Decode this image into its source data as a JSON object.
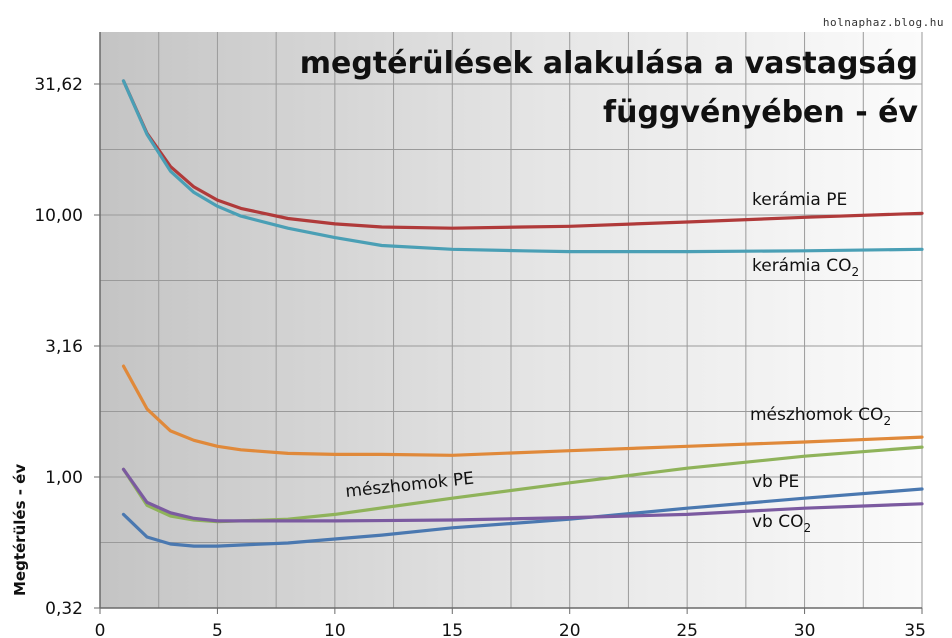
{
  "watermark": "holnaphaz.blog.hu",
  "chart_data": {
    "type": "line",
    "title_lines": [
      "megtérülések alakulása a vastagság",
      "függvényében - év"
    ],
    "xlabel": "",
    "ylabel": "Megtérülés - év",
    "y_scale": "log",
    "xlim": [
      0,
      35
    ],
    "ylim": [
      0.32,
      35
    ],
    "x_ticks": [
      0,
      5,
      10,
      15,
      20,
      25,
      30,
      35
    ],
    "x_tick_labels": [
      "0",
      "5",
      "10",
      "15",
      "20",
      "25",
      "30",
      "35"
    ],
    "y_ticks": [
      0.3162,
      1.0,
      3.162,
      10.0,
      31.62
    ],
    "y_tick_labels": [
      "0,32",
      "1,00",
      "3,16",
      "10,00",
      "31,62"
    ],
    "grid": true,
    "series": [
      {
        "name": "kerámia PE",
        "label_main": "kerámia PE",
        "label_sub": "",
        "color": "#b03a3a",
        "x": [
          1,
          2,
          3,
          4,
          5,
          6,
          8,
          10,
          12,
          15,
          18,
          20,
          25,
          30,
          35
        ],
        "y": [
          32.5,
          20.5,
          15.3,
          12.8,
          11.4,
          10.6,
          9.7,
          9.25,
          9.0,
          8.9,
          9.0,
          9.05,
          9.4,
          9.8,
          10.15
        ]
      },
      {
        "name": "kerámia CO2",
        "label_main": "kerámia CO",
        "label_sub": "2",
        "color": "#4a9fb5",
        "x": [
          1,
          2,
          3,
          4,
          5,
          6,
          8,
          10,
          12,
          15,
          18,
          20,
          25,
          30,
          35
        ],
        "y": [
          32.5,
          20.3,
          14.7,
          12.2,
          10.8,
          9.9,
          8.9,
          8.2,
          7.65,
          7.4,
          7.3,
          7.25,
          7.25,
          7.3,
          7.4
        ]
      },
      {
        "name": "mészhomok CO2",
        "label_main": "mészhomok CO",
        "label_sub": "2",
        "color": "#e0893a",
        "x": [
          1,
          2,
          3,
          4,
          5,
          6,
          8,
          10,
          12,
          15,
          20,
          25,
          30,
          35
        ],
        "y": [
          2.65,
          1.82,
          1.5,
          1.38,
          1.31,
          1.27,
          1.23,
          1.22,
          1.22,
          1.21,
          1.26,
          1.31,
          1.36,
          1.42
        ]
      },
      {
        "name": "mészhomok PE",
        "label_main": "mészhomok PE",
        "label_sub": "",
        "color": "#8fb35a",
        "x": [
          1,
          2,
          3,
          4,
          5,
          6,
          8,
          10,
          15,
          20,
          25,
          30,
          35
        ],
        "y": [
          1.07,
          0.78,
          0.71,
          0.685,
          0.675,
          0.68,
          0.69,
          0.72,
          0.83,
          0.95,
          1.08,
          1.2,
          1.3
        ]
      },
      {
        "name": "vb PE",
        "label_main": "vb PE",
        "label_sub": "",
        "color": "#4a78b0",
        "x": [
          1,
          2,
          3,
          4,
          5,
          6,
          8,
          10,
          12,
          15,
          20,
          25,
          30,
          35
        ],
        "y": [
          0.72,
          0.59,
          0.555,
          0.545,
          0.545,
          0.55,
          0.56,
          0.58,
          0.6,
          0.64,
          0.69,
          0.76,
          0.83,
          0.9
        ]
      },
      {
        "name": "vb CO2",
        "label_main": "vb CO",
        "label_sub": "2",
        "color": "#7b5aa0",
        "x": [
          1,
          2,
          3,
          4,
          5,
          6,
          8,
          10,
          15,
          20,
          25,
          30,
          35
        ],
        "y": [
          1.07,
          0.8,
          0.73,
          0.695,
          0.68,
          0.68,
          0.68,
          0.68,
          0.685,
          0.7,
          0.72,
          0.76,
          0.79
        ]
      }
    ]
  }
}
